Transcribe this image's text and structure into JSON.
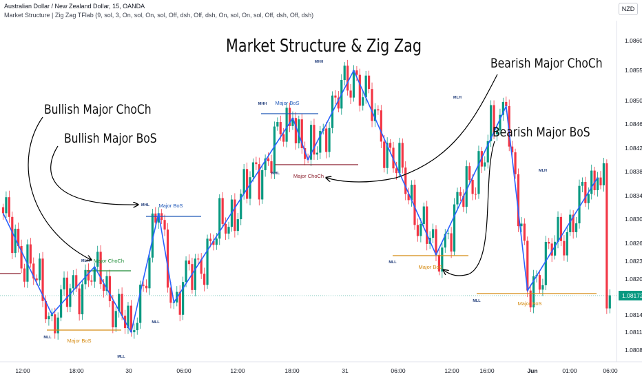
{
  "header": {
    "symbol_line": "Australian Dollar / New Zealand Dollar, 15, OANDA",
    "indicator_line": "Market Structure | Zig Zag TFlab (9, sol, 3, On, sol, On, sol, Off, dsh, Off, dsh, On, sol, On, sol, Off, dsh, Off, dsh)",
    "currency": "NZD"
  },
  "chart_data": {
    "type": "candlestick",
    "title": "Market Structure & Zig Zag",
    "y_ticks": [
      "1.08600",
      "1.08550",
      "1.08500",
      "1.08460",
      "1.08420",
      "1.08380",
      "1.08340",
      "1.08300",
      "1.08260",
      "1.08230",
      "1.08200",
      "1.08140",
      "1.08110",
      "1.08080"
    ],
    "last_price": "1.08172",
    "x_ticks": [
      "12:00",
      "18:00",
      "30",
      "06:00",
      "12:00",
      "18:00",
      "31",
      "06:00",
      "12:00",
      "16:00",
      "Jun",
      "01:00",
      "06:00"
    ],
    "zigzag": [
      {
        "t": 0,
        "p": 1.0831
      },
      {
        "t": 16,
        "p": 1.0814
      },
      {
        "t": 30,
        "p": 1.0822
      },
      {
        "t": 42,
        "p": 1.0811
      },
      {
        "t": 51,
        "p": 1.0831
      },
      {
        "t": 56,
        "p": 1.0816
      },
      {
        "t": 95,
        "p": 1.0847
      },
      {
        "t": 100,
        "p": 1.084
      },
      {
        "t": 115,
        "p": 1.0855
      },
      {
        "t": 142,
        "p": 1.0824
      },
      {
        "t": 165,
        "p": 1.0849
      },
      {
        "t": 172,
        "p": 1.0818
      },
      {
        "t": 195,
        "p": 1.0837
      }
    ],
    "pivot_labels": [
      "MLL",
      "MLH",
      "MLL",
      "MLL",
      "MHL",
      "MHH",
      "MHL",
      "MHH",
      "MLL",
      "MLH",
      "MLL",
      "MLH"
    ],
    "structure_labels": {
      "major_choch_bull": "Major ChoCh",
      "major_bos_bull": "Major BoS",
      "major_bos_low": "Major BoS",
      "major_bos_high": "Major BoS",
      "major_choch_bear": "Major ChoCh",
      "major_bos_bear1": "Major BoS",
      "major_bos_bear2": "Major BoS"
    },
    "annotations": {
      "bull_choch": "Bullish Major ChoCh",
      "bull_bos": "Bullish Major BoS",
      "bear_choch": "Bearish Major ChoCh",
      "bear_bos": "Bearish Major BoS"
    },
    "colors": {
      "up": "#089981",
      "down": "#f23645",
      "zigzag": "#2962ff",
      "bos_bull": "#1e57b8",
      "bos_bear": "#d58a10",
      "choch_bull": "#1b8b35",
      "choch_bear": "#8b1f2d",
      "price_label": "#089981"
    }
  }
}
